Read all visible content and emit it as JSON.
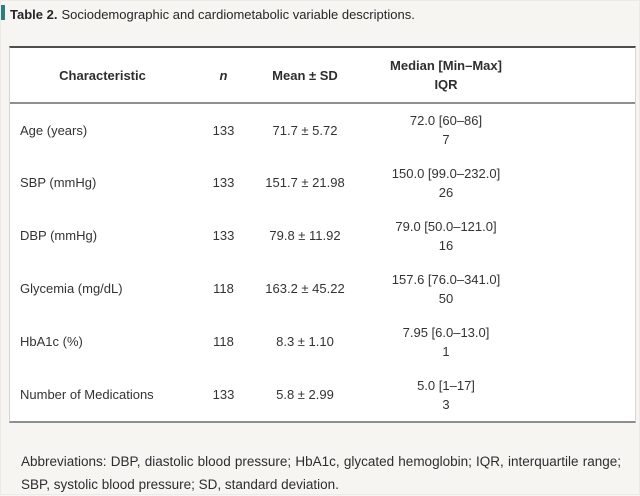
{
  "colors": {
    "accent": "#2c7d7d"
  },
  "caption": {
    "label": "Table 2.",
    "text": "Sociodemographic and cardiometabolic variable descriptions."
  },
  "table": {
    "columns": [
      {
        "key": "characteristic",
        "label": "Characteristic"
      },
      {
        "key": "n",
        "label": "n"
      },
      {
        "key": "mean_sd",
        "label": "Mean ± SD"
      },
      {
        "key": "median_iqr",
        "label_line1": "Median [Min–Max]",
        "label_line2": "IQR"
      }
    ],
    "rows": [
      {
        "characteristic": "Age (years)",
        "n": "133",
        "mean_sd": "71.7 ± 5.72",
        "median": "72.0 [60–86]",
        "iqr": "7"
      },
      {
        "characteristic": "SBP (mmHg)",
        "n": "133",
        "mean_sd": "151.7 ± 21.98",
        "median": "150.0 [99.0–232.0]",
        "iqr": "26"
      },
      {
        "characteristic": "DBP (mmHg)",
        "n": "133",
        "mean_sd": "79.8 ± 11.92",
        "median": "79.0 [50.0–121.0]",
        "iqr": "16"
      },
      {
        "characteristic": "Glycemia (mg/dL)",
        "n": "118",
        "mean_sd": "163.2 ± 45.22",
        "median": "157.6 [76.0–341.0]",
        "iqr": "50"
      },
      {
        "characteristic": "HbA1c (%)",
        "n": "118",
        "mean_sd": "8.3 ± 1.10",
        "median": "7.95 [6.0–13.0]",
        "iqr": "1"
      },
      {
        "characteristic": "Number of Medications",
        "n": "133",
        "mean_sd": "5.8 ± 2.99",
        "median": "5.0 [1–17]",
        "iqr": "3"
      }
    ]
  },
  "footnote": "Abbreviations: DBP, diastolic blood pressure; HbA1c, glycated hemoglobin; IQR, interquartile range; SBP, systolic blood pressure; SD, standard deviation."
}
